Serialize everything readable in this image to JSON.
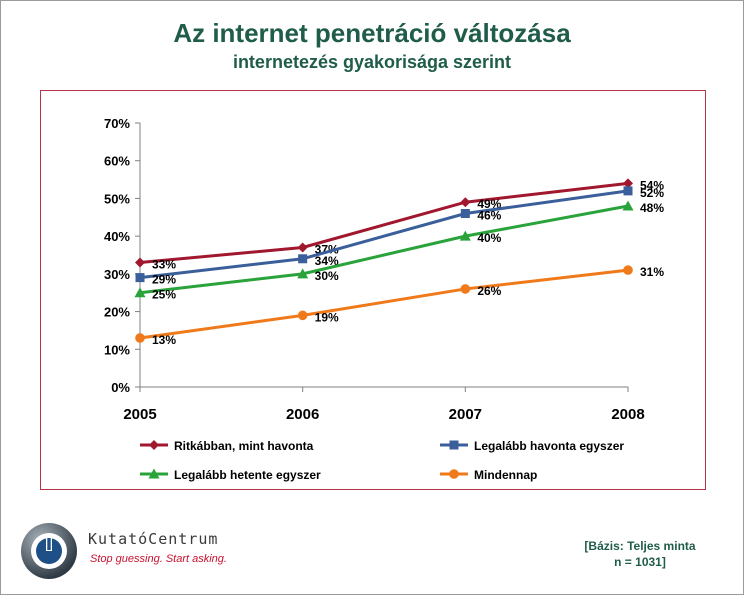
{
  "title": "Az internet penetráció változása",
  "subtitle": "internetezés gyakorisága szerint",
  "chart_data": {
    "type": "line",
    "x": [
      "2005",
      "2006",
      "2007",
      "2008"
    ],
    "ylim": [
      0,
      70
    ],
    "yticks": [
      "0%",
      "10%",
      "20%",
      "30%",
      "40%",
      "50%",
      "60%",
      "70%"
    ],
    "series": [
      {
        "name": "Ritkábban, mint havonta",
        "values": [
          33,
          37,
          49,
          54
        ],
        "labels": [
          "33%",
          "37%",
          "49%",
          "54%"
        ],
        "color": "#a0172e",
        "marker": "diamond"
      },
      {
        "name": "Legalább havonta egyszer",
        "values": [
          29,
          34,
          46,
          52
        ],
        "labels": [
          "29%",
          "34%",
          "46%",
          "52%"
        ],
        "color": "#3a5f9a",
        "marker": "square"
      },
      {
        "name": "Legalább hetente egyszer",
        "values": [
          25,
          30,
          40,
          48
        ],
        "labels": [
          "25%",
          "30%",
          "40%",
          "48%"
        ],
        "color": "#2aa33a",
        "marker": "triangle"
      },
      {
        "name": "Mindennap",
        "values": [
          13,
          19,
          26,
          31
        ],
        "labels": [
          "13%",
          "19%",
          "26%",
          "31%"
        ],
        "color": "#f07a1a",
        "marker": "circle"
      }
    ],
    "grid": false,
    "legend": "bottom"
  },
  "footer": {
    "brand": "KutatóCentrum",
    "slogan": "Stop guessing. Start asking.",
    "base_line1": "[Bázis: Teljes minta",
    "base_line2": "n = 1031]"
  }
}
